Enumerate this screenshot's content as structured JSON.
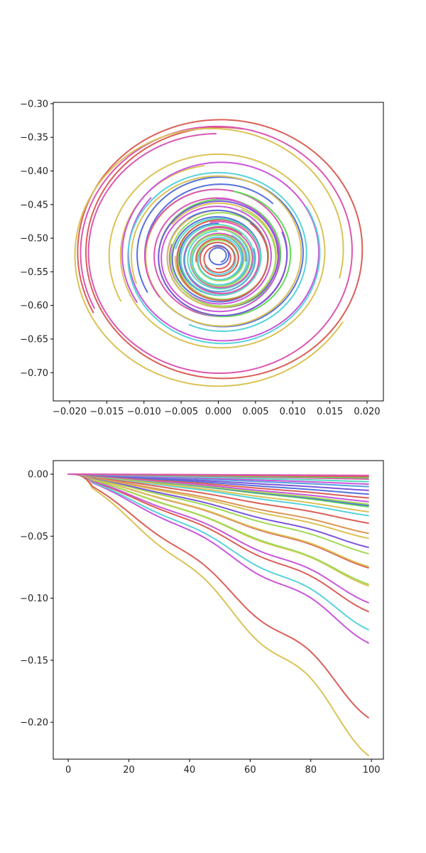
{
  "chart_data": [
    {
      "type": "line",
      "title": "",
      "xlabel": "",
      "ylabel": "",
      "xlim": [
        -0.0222,
        0.0222
      ],
      "ylim": [
        -0.742,
        -0.298
      ],
      "xticks": [
        -0.02,
        -0.015,
        -0.01,
        -0.005,
        0.0,
        0.005,
        0.01,
        0.015,
        0.02
      ],
      "xtick_labels": [
        "−0.020",
        "−0.015",
        "−0.010",
        "−0.005",
        "0.000",
        "0.005",
        "0.010",
        "0.015",
        "0.020"
      ],
      "yticks": [
        -0.3,
        -0.35,
        -0.4,
        -0.45,
        -0.5,
        -0.55,
        -0.6,
        -0.65,
        -0.7
      ],
      "ytick_labels": [
        "−0.30",
        "−0.35",
        "−0.40",
        "−0.45",
        "−0.50",
        "−0.55",
        "−0.60",
        "−0.65",
        "−0.70"
      ],
      "grid": false,
      "legend": "none",
      "series": [
        {
          "color": "#db5f57",
          "start_angle": 3.62,
          "radius": [
            0.0195,
            0.018
          ],
          "turns": 1.35,
          "center": [
            0.0005,
            -0.519
          ]
        },
        {
          "color": "#db57b2",
          "start_angle": 3.6,
          "radius": [
            0.0186,
            0.0172
          ],
          "turns": 1.32,
          "center": [
            0.0,
            -0.52
          ]
        },
        {
          "color": "#dbc257",
          "start_angle": 5.75,
          "radius": [
            0.02,
            0.0172
          ],
          "turns": 0.95,
          "center": [
            -0.0005,
            -0.521
          ]
        },
        {
          "color": "#dbc257",
          "start_angle": 3.62,
          "radius": [
            0.015,
            0.013
          ],
          "turns": 1.3,
          "center": [
            0.0002,
            -0.523
          ]
        },
        {
          "color": "#c957db",
          "start_angle": 3.7,
          "radius": [
            0.0135,
            0.0125
          ],
          "turns": 1.2,
          "center": [
            0.0005,
            -0.522
          ]
        },
        {
          "color": "#5770db",
          "start_angle": 3.65,
          "radius": [
            0.0115,
            0.01
          ],
          "turns": 1.45,
          "center": [
            0.0005,
            -0.523
          ]
        },
        {
          "color": "#dbc257",
          "start_angle": 3.5,
          "radius": [
            0.012,
            0.0095
          ],
          "turns": 1.3,
          "center": [
            0.0002,
            -0.524
          ]
        },
        {
          "color": "#57d3db",
          "start_angle": 0.55,
          "radius": [
            0.0135,
            0.011
          ],
          "turns": 1.4,
          "center": [
            0.0003,
            -0.525
          ]
        },
        {
          "color": "#db57b2",
          "start_angle": 3.8,
          "radius": [
            0.01,
            0.008
          ],
          "turns": 1.6,
          "center": [
            0.0,
            -0.525
          ]
        },
        {
          "color": "#5fdb57",
          "start_angle": 1.4,
          "radius": [
            0.0095,
            0.0075
          ],
          "turns": 1.5,
          "center": [
            0.0005,
            -0.526
          ]
        },
        {
          "color": "#7c57db",
          "start_angle": 0.4,
          "radius": [
            0.009,
            0.007
          ],
          "turns": 1.7,
          "center": [
            0.0003,
            -0.527
          ]
        },
        {
          "color": "#c957db",
          "start_angle": 1.6,
          "radius": [
            0.0085,
            0.0065
          ],
          "turns": 1.8,
          "center": [
            0.0,
            -0.528
          ]
        },
        {
          "color": "#dbc257",
          "start_angle": 2.5,
          "radius": [
            0.008,
            0.006
          ],
          "turns": 1.9,
          "center": [
            0.0002,
            -0.528
          ]
        },
        {
          "color": "#a0db57",
          "start_angle": 1.2,
          "radius": [
            0.0075,
            0.0055
          ],
          "turns": 2.0,
          "center": [
            0.0004,
            -0.529
          ]
        },
        {
          "color": "#5770db",
          "start_angle": 2.2,
          "radius": [
            0.007,
            0.005
          ],
          "turns": 2.1,
          "center": [
            0.0,
            -0.529
          ]
        },
        {
          "color": "#db5f57",
          "start_angle": 0.9,
          "radius": [
            0.0065,
            0.0045
          ],
          "turns": 2.0,
          "center": [
            0.0003,
            -0.53
          ]
        },
        {
          "color": "#57dbc2",
          "start_angle": 2.9,
          "radius": [
            0.006,
            0.004
          ],
          "turns": 2.2,
          "center": [
            0.0001,
            -0.53
          ]
        },
        {
          "color": "#db57b2",
          "start_angle": 1.8,
          "radius": [
            0.0055,
            0.0035
          ],
          "turns": 2.3,
          "center": [
            0.0002,
            -0.531
          ]
        },
        {
          "color": "#57a0db",
          "start_angle": 0.3,
          "radius": [
            0.005,
            0.003
          ],
          "turns": 2.4,
          "center": [
            0.0,
            -0.531
          ]
        },
        {
          "color": "#a0db57",
          "start_angle": 2.7,
          "radius": [
            0.0045,
            0.0025
          ],
          "turns": 2.5,
          "center": [
            0.0001,
            -0.531
          ]
        },
        {
          "color": "#57d3db",
          "start_angle": 1.1,
          "radius": [
            0.004,
            0.002
          ],
          "turns": 2.6,
          "center": [
            0.0,
            -0.532
          ]
        },
        {
          "color": "#db5f57",
          "start_angle": 3.3,
          "radius": [
            0.003,
            0.0015
          ],
          "turns": 2.8,
          "center": [
            0.0,
            -0.53
          ]
        },
        {
          "color": "#5770db",
          "start_angle": 2.0,
          "radius": [
            0.0015,
            0.001
          ],
          "turns": 1.5,
          "center": [
            0.0,
            -0.526
          ]
        }
      ]
    },
    {
      "type": "line",
      "title": "",
      "xlabel": "",
      "ylabel": "",
      "xlim": [
        -4.95,
        103.95
      ],
      "ylim": [
        -0.2297,
        0.0109
      ],
      "xticks": [
        0,
        20,
        40,
        60,
        80,
        100
      ],
      "xtick_labels": [
        "0",
        "20",
        "40",
        "60",
        "80",
        "100"
      ],
      "yticks": [
        0.0,
        -0.05,
        -0.1,
        -0.15,
        -0.2
      ],
      "ytick_labels": [
        "0.00",
        "−0.05",
        "−0.10",
        "−0.15",
        "−0.20"
      ],
      "grid": false,
      "legend": "none",
      "x_range": [
        0,
        99
      ],
      "series": [
        {
          "color": "#dbc257",
          "end": -0.219,
          "wiggle": 0.28
        },
        {
          "color": "#db5f57",
          "end": -0.19,
          "wiggle": 0.26
        },
        {
          "color": "#c957db",
          "end": -0.132,
          "wiggle": 0.24
        },
        {
          "color": "#57d3db",
          "end": -0.122,
          "wiggle": 0.22
        },
        {
          "color": "#db5f57",
          "end": -0.108,
          "wiggle": 0.2
        },
        {
          "color": "#c957db",
          "end": -0.101,
          "wiggle": 0.2
        },
        {
          "color": "#dbc257",
          "end": -0.088,
          "wiggle": 0.18
        },
        {
          "color": "#a0db57",
          "end": -0.087,
          "wiggle": 0.16
        },
        {
          "color": "#db5f57",
          "end": -0.074,
          "wiggle": 0.16
        },
        {
          "color": "#dbc257",
          "end": -0.073,
          "wiggle": 0.16
        },
        {
          "color": "#a0db57",
          "end": -0.063,
          "wiggle": 0.14
        },
        {
          "color": "#7c57db",
          "end": -0.058,
          "wiggle": 0.14
        },
        {
          "color": "#dbc257",
          "end": -0.051,
          "wiggle": 0.12
        },
        {
          "color": "#db9657",
          "end": -0.047,
          "wiggle": 0.12
        },
        {
          "color": "#db5f57",
          "end": -0.039,
          "wiggle": 0.1
        },
        {
          "color": "#57d3db",
          "end": -0.033,
          "wiggle": 0.1
        },
        {
          "color": "#dbc257",
          "end": -0.03,
          "wiggle": 0.09
        },
        {
          "color": "#5fdb57",
          "end": -0.026,
          "wiggle": 0.08
        },
        {
          "color": "#5770db",
          "end": -0.025,
          "wiggle": 0.08
        },
        {
          "color": "#a0db57",
          "end": -0.024,
          "wiggle": 0.08
        },
        {
          "color": "#c957db",
          "end": -0.022,
          "wiggle": 0.07
        },
        {
          "color": "#db5f57",
          "end": -0.019,
          "wiggle": 0.07
        },
        {
          "color": "#5770db",
          "end": -0.016,
          "wiggle": 0.06
        },
        {
          "color": "#7c57db",
          "end": -0.013,
          "wiggle": 0.06
        },
        {
          "color": "#57a0db",
          "end": -0.01,
          "wiggle": 0.05
        },
        {
          "color": "#c957db",
          "end": -0.008,
          "wiggle": 0.05
        },
        {
          "color": "#57dbc2",
          "end": -0.006,
          "wiggle": 0.04
        },
        {
          "color": "#db57b2",
          "end": -0.004,
          "wiggle": 0.04
        },
        {
          "color": "#5fdb57",
          "end": -0.003,
          "wiggle": 0.03
        },
        {
          "color": "#db5f57",
          "end": -0.002,
          "wiggle": 0.03
        },
        {
          "color": "#db57b2",
          "end": -0.001,
          "wiggle": 0.02
        }
      ]
    }
  ]
}
